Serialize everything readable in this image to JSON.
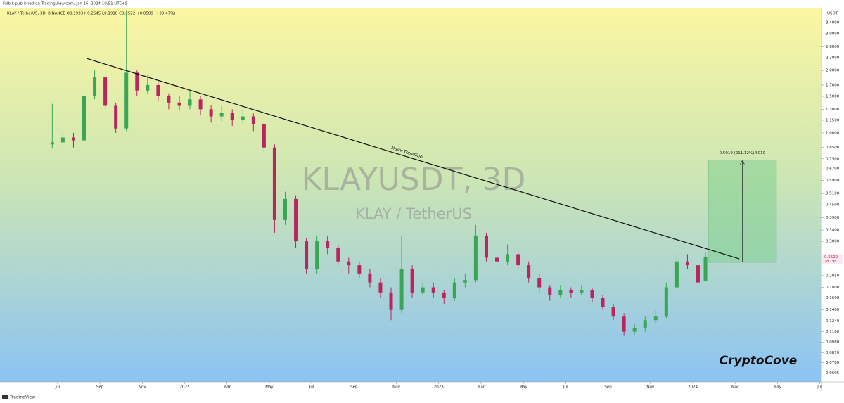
{
  "header": {
    "publisher": "Falbik published on TradingView.com, Jan 16, 2024 10:51 UTC+5",
    "footer": "TradingView"
  },
  "chart_data": {
    "type": "candlestick",
    "title": "KLAY / TetherUS, 3D, BINANCE  O0.1933  H0.2645  L0.1918  C0.2522  +0.0589 (+30.47%)",
    "watermark": "KLAYUSDT, 3D",
    "watermark_subtitle": "KLAY / TetherUS",
    "brand": "CryptoCove",
    "currency": "USDT",
    "countdown": "2d 19h",
    "log_scale": true,
    "up_color": "#3aa655",
    "down_color": "#b8255f",
    "x": [
      -0.25,
      0.25,
      0.75,
      1.25,
      1.75,
      2.25,
      2.75,
      3.25,
      3.75,
      4.25,
      4.75,
      5.25,
      5.75,
      6.25,
      6.75,
      7.25,
      7.75,
      8.25,
      8.75,
      9.25,
      9.75,
      10.25,
      10.75,
      11.25,
      11.75,
      12.25,
      12.75,
      13.25,
      13.75,
      14.25,
      14.75,
      15.25,
      15.75,
      16.25,
      16.75,
      17.25,
      17.75,
      18.25,
      18.75,
      19.25,
      19.75,
      20.25,
      20.75,
      21.25,
      21.75,
      22.25,
      22.75,
      23.25,
      23.75,
      24.25,
      24.75,
      25.25,
      25.75,
      26.25,
      26.75,
      27.25,
      27.75,
      28.25,
      28.75,
      29.25,
      29.75,
      30.25,
      30.6
    ],
    "open": [
      0.88,
      0.9,
      0.95,
      0.92,
      1.5,
      1.85,
      1.35,
      1.05,
      1.95,
      1.6,
      1.7,
      1.5,
      1.4,
      1.35,
      1.45,
      1.3,
      1.2,
      1.25,
      1.15,
      1.2,
      1.1,
      0.85,
      0.38,
      0.48,
      0.3,
      0.22,
      0.3,
      0.28,
      0.24,
      0.23,
      0.21,
      0.19,
      0.17,
      0.14,
      0.22,
      0.17,
      0.18,
      0.17,
      0.16,
      0.19,
      0.195,
      0.32,
      0.25,
      0.24,
      0.26,
      0.23,
      0.2,
      0.18,
      0.165,
      0.175,
      0.17,
      0.175,
      0.16,
      0.145,
      0.13,
      0.11,
      0.115,
      0.125,
      0.13,
      0.18,
      0.24,
      0.23,
      0.1933
    ],
    "high": [
      1.38,
      1.02,
      1.0,
      1.6,
      2.0,
      1.9,
      1.4,
      3.9,
      2.0,
      1.9,
      1.75,
      1.55,
      1.5,
      1.6,
      1.5,
      1.36,
      1.35,
      1.3,
      1.28,
      1.24,
      1.12,
      0.88,
      0.52,
      0.5,
      0.31,
      0.32,
      0.32,
      0.29,
      0.25,
      0.24,
      0.22,
      0.2,
      0.18,
      0.32,
      0.23,
      0.19,
      0.19,
      0.175,
      0.2,
      0.21,
      0.36,
      0.33,
      0.26,
      0.29,
      0.27,
      0.24,
      0.21,
      0.185,
      0.185,
      0.18,
      0.185,
      0.178,
      0.165,
      0.15,
      0.135,
      0.12,
      0.13,
      0.14,
      0.19,
      0.26,
      0.26,
      0.235,
      0.2645
    ],
    "low": [
      0.84,
      0.86,
      0.85,
      0.9,
      1.45,
      1.3,
      1.0,
      1.02,
      1.5,
      1.55,
      1.42,
      1.3,
      1.28,
      1.3,
      1.22,
      1.12,
      1.14,
      1.08,
      1.1,
      1.02,
      0.8,
      0.33,
      0.36,
      0.28,
      0.21,
      0.21,
      0.26,
      0.23,
      0.21,
      0.2,
      0.18,
      0.16,
      0.125,
      0.135,
      0.16,
      0.165,
      0.16,
      0.15,
      0.155,
      0.18,
      0.19,
      0.24,
      0.22,
      0.23,
      0.22,
      0.19,
      0.17,
      0.155,
      0.16,
      0.16,
      0.165,
      0.152,
      0.14,
      0.125,
      0.105,
      0.106,
      0.11,
      0.12,
      0.128,
      0.175,
      0.22,
      0.16,
      0.1918
    ],
    "close": [
      0.9,
      0.95,
      0.92,
      1.5,
      1.85,
      1.35,
      1.05,
      1.95,
      1.6,
      1.7,
      1.5,
      1.4,
      1.35,
      1.45,
      1.3,
      1.2,
      1.25,
      1.15,
      1.2,
      1.1,
      0.85,
      0.38,
      0.48,
      0.3,
      0.22,
      0.3,
      0.28,
      0.24,
      0.23,
      0.21,
      0.19,
      0.17,
      0.14,
      0.22,
      0.17,
      0.18,
      0.17,
      0.16,
      0.19,
      0.195,
      0.32,
      0.25,
      0.24,
      0.26,
      0.23,
      0.2,
      0.18,
      0.165,
      0.175,
      0.17,
      0.175,
      0.16,
      0.145,
      0.13,
      0.11,
      0.115,
      0.125,
      0.13,
      0.18,
      0.24,
      0.23,
      0.19,
      0.2522
    ],
    "xlim": [
      -2.72,
      36.08
    ],
    "xticks": [
      {
        "value": 0,
        "label": "Jul"
      },
      {
        "value": 2,
        "label": "Sep"
      },
      {
        "value": 4,
        "label": "Nov"
      },
      {
        "value": 6,
        "label": "2022"
      },
      {
        "value": 8,
        "label": "Mar"
      },
      {
        "value": 10,
        "label": "May"
      },
      {
        "value": 12,
        "label": "Jul"
      },
      {
        "value": 14,
        "label": "Sep"
      },
      {
        "value": 16,
        "label": "Nov"
      },
      {
        "value": 18,
        "label": "2023"
      },
      {
        "value": 20,
        "label": "Mar"
      },
      {
        "value": 22,
        "label": "May"
      },
      {
        "value": 24,
        "label": "Jul"
      },
      {
        "value": 26,
        "label": "Sep"
      },
      {
        "value": 28,
        "label": "Nov"
      },
      {
        "value": 30,
        "label": "2024"
      },
      {
        "value": 32,
        "label": "Mar"
      },
      {
        "value": 34,
        "label": "May"
      },
      {
        "value": 36,
        "label": "Jul"
      }
    ],
    "ylim": [
      0.063,
      3.98
    ],
    "yticks": [
      {
        "value": 3.4,
        "label": "3.4000"
      },
      {
        "value": 3.0,
        "label": "3.0000"
      },
      {
        "value": 2.6,
        "label": "2.6000"
      },
      {
        "value": 2.3,
        "label": "2.3000"
      },
      {
        "value": 2.0,
        "label": "2.0000"
      },
      {
        "value": 1.7,
        "label": "1.7000"
      },
      {
        "value": 1.5,
        "label": "1.5000"
      },
      {
        "value": 1.3,
        "label": "1.3000"
      },
      {
        "value": 1.15,
        "label": "1.1500"
      },
      {
        "value": 1.0,
        "label": "1.0000"
      },
      {
        "value": 0.85,
        "label": "0.8500"
      },
      {
        "value": 0.75,
        "label": "0.7500"
      },
      {
        "value": 0.67,
        "label": "0.6700"
      },
      {
        "value": 0.59,
        "label": "0.5900"
      },
      {
        "value": 0.51,
        "label": "0.5100"
      },
      {
        "value": 0.45,
        "label": "0.4500"
      },
      {
        "value": 0.39,
        "label": "0.3900"
      },
      {
        "value": 0.34,
        "label": "0.3400"
      },
      {
        "value": 0.3,
        "label": "0.3000"
      },
      {
        "value": 0.205,
        "label": "0.2050"
      },
      {
        "value": 0.18,
        "label": "0.1800"
      },
      {
        "value": 0.16,
        "label": "0.1600"
      },
      {
        "value": 0.14,
        "label": "0.1400"
      },
      {
        "value": 0.124,
        "label": "0.1240"
      },
      {
        "value": 0.11,
        "label": "0.1100"
      },
      {
        "value": 0.098,
        "label": "0.0980"
      },
      {
        "value": 0.087,
        "label": "0.0870"
      },
      {
        "value": 0.078,
        "label": "0.0780"
      },
      {
        "value": 0.0695,
        "label": "0.0695"
      }
    ],
    "trendline": {
      "label": "Major Trendline",
      "x": [
        1.4,
        32.2
      ],
      "y": [
        2.28,
        0.247
      ]
    },
    "measure": {
      "label": "0.5019 (211.12%) 5019",
      "x": [
        30.73,
        33.95
      ],
      "y": [
        0.2377,
        0.7396
      ]
    }
  }
}
